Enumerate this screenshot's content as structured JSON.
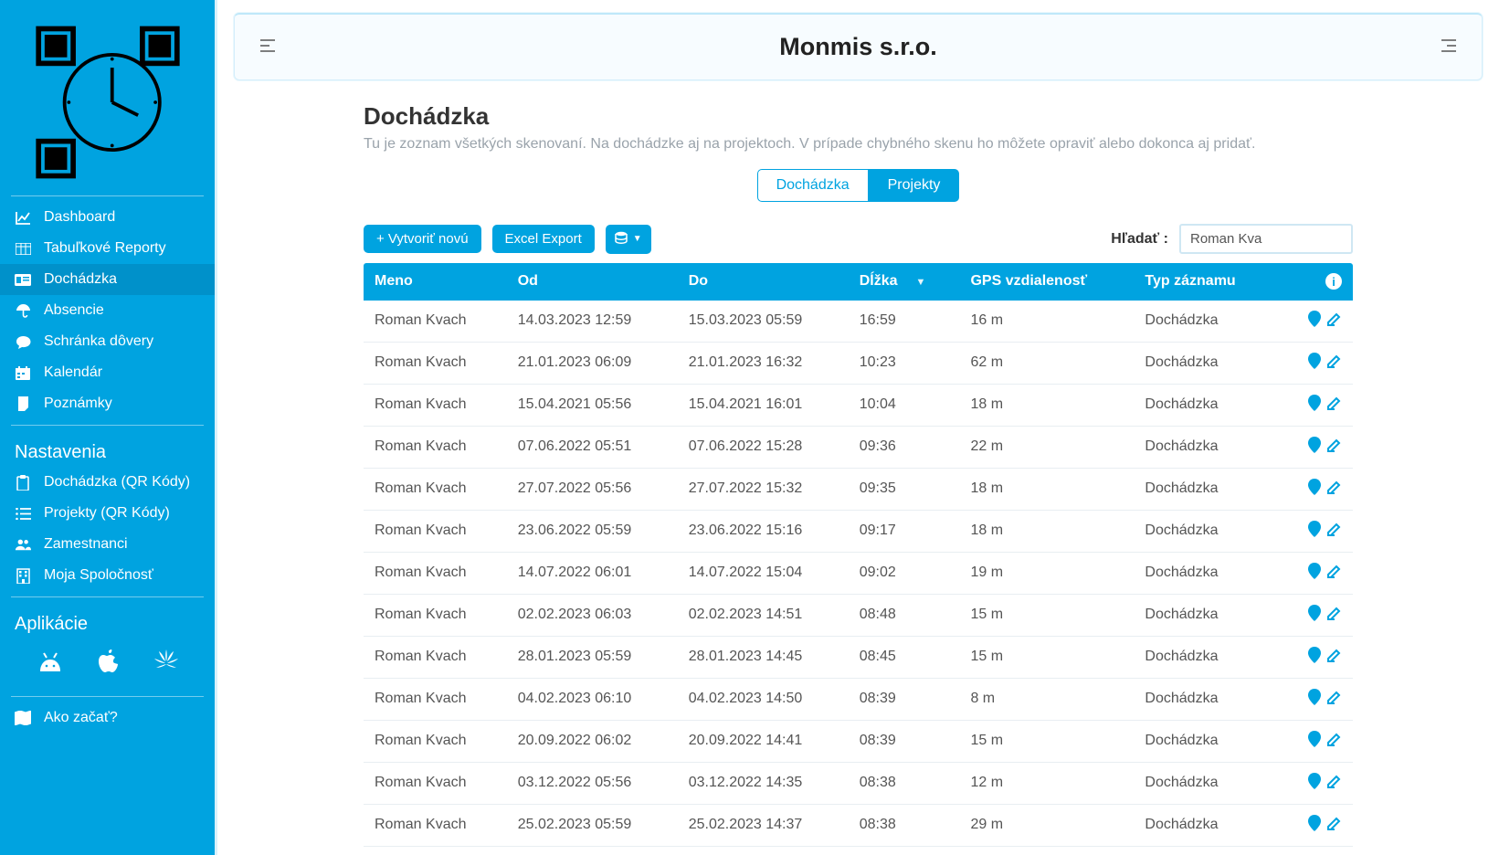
{
  "sidebar": {
    "nav": [
      {
        "icon": "chart",
        "label": "Dashboard",
        "active": false
      },
      {
        "icon": "table",
        "label": "Tabuľkové Reporty",
        "active": false
      },
      {
        "icon": "id",
        "label": "Dochádzka",
        "active": true
      },
      {
        "icon": "umbrella",
        "label": "Absencie",
        "active": false
      },
      {
        "icon": "chat",
        "label": "Schránka dôvery",
        "active": false
      },
      {
        "icon": "calendar",
        "label": "Kalendár",
        "active": false
      },
      {
        "icon": "note",
        "label": "Poznámky",
        "active": false
      }
    ],
    "settings_heading": "Nastavenia",
    "settings": [
      {
        "icon": "clipboard",
        "label": "Dochádzka (QR Kódy)"
      },
      {
        "icon": "list",
        "label": "Projekty (QR Kódy)"
      },
      {
        "icon": "users",
        "label": "Zamestnanci"
      },
      {
        "icon": "building",
        "label": "Moja Spoločnosť"
      }
    ],
    "apps_heading": "Aplikácie",
    "help_label": "Ako začať?"
  },
  "header": {
    "company": "Monmis s.r.o."
  },
  "page": {
    "title": "Dochádzka",
    "subtitle": "Tu je zoznam všetkých skenovaní. Na dochádzke aj na projektoch. V prípade chybného skenu ho môžete opraviť alebo dokonca aj pridať."
  },
  "segmented": {
    "a": "Dochádzka",
    "b": "Projekty"
  },
  "toolbar": {
    "create": "+ Vytvoriť novú",
    "export": "Excel Export",
    "search_label": "Hľadať :",
    "search_value": "Roman Kva"
  },
  "table": {
    "columns": [
      "Meno",
      "Od",
      "Do",
      "Dĺžka",
      "GPS vzdialenosť",
      "Typ záznamu"
    ],
    "rows": [
      {
        "meno": "Roman Kvach",
        "od": "14.03.2023 12:59",
        "do": "15.03.2023 05:59",
        "dlzka": "16:59",
        "gps": "16 m",
        "typ": "Dochádzka"
      },
      {
        "meno": "Roman Kvach",
        "od": "21.01.2023 06:09",
        "do": "21.01.2023 16:32",
        "dlzka": "10:23",
        "gps": "62 m",
        "typ": "Dochádzka"
      },
      {
        "meno": "Roman Kvach",
        "od": "15.04.2021 05:56",
        "do": "15.04.2021 16:01",
        "dlzka": "10:04",
        "gps": "18 m",
        "typ": "Dochádzka"
      },
      {
        "meno": "Roman Kvach",
        "od": "07.06.2022 05:51",
        "do": "07.06.2022 15:28",
        "dlzka": "09:36",
        "gps": "22 m",
        "typ": "Dochádzka"
      },
      {
        "meno": "Roman Kvach",
        "od": "27.07.2022 05:56",
        "do": "27.07.2022 15:32",
        "dlzka": "09:35",
        "gps": "18 m",
        "typ": "Dochádzka"
      },
      {
        "meno": "Roman Kvach",
        "od": "23.06.2022 05:59",
        "do": "23.06.2022 15:16",
        "dlzka": "09:17",
        "gps": "18 m",
        "typ": "Dochádzka"
      },
      {
        "meno": "Roman Kvach",
        "od": "14.07.2022 06:01",
        "do": "14.07.2022 15:04",
        "dlzka": "09:02",
        "gps": "19 m",
        "typ": "Dochádzka"
      },
      {
        "meno": "Roman Kvach",
        "od": "02.02.2023 06:03",
        "do": "02.02.2023 14:51",
        "dlzka": "08:48",
        "gps": "15 m",
        "typ": "Dochádzka"
      },
      {
        "meno": "Roman Kvach",
        "od": "28.01.2023 05:59",
        "do": "28.01.2023 14:45",
        "dlzka": "08:45",
        "gps": "15 m",
        "typ": "Dochádzka"
      },
      {
        "meno": "Roman Kvach",
        "od": "04.02.2023 06:10",
        "do": "04.02.2023 14:50",
        "dlzka": "08:39",
        "gps": "8 m",
        "typ": "Dochádzka"
      },
      {
        "meno": "Roman Kvach",
        "od": "20.09.2022 06:02",
        "do": "20.09.2022 14:41",
        "dlzka": "08:39",
        "gps": "15 m",
        "typ": "Dochádzka"
      },
      {
        "meno": "Roman Kvach",
        "od": "03.12.2022 05:56",
        "do": "03.12.2022 14:35",
        "dlzka": "08:38",
        "gps": "12 m",
        "typ": "Dochádzka"
      },
      {
        "meno": "Roman Kvach",
        "od": "25.02.2023 05:59",
        "do": "25.02.2023 14:37",
        "dlzka": "08:38",
        "gps": "29 m",
        "typ": "Dochádzka"
      }
    ]
  }
}
